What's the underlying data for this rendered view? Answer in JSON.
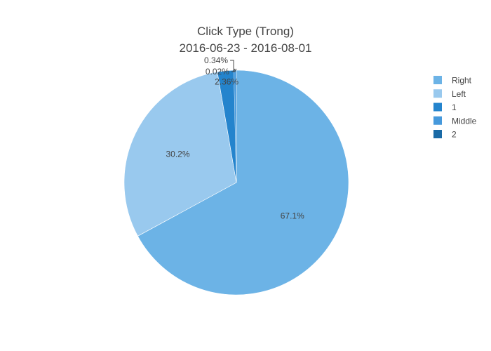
{
  "chart_data": {
    "type": "pie",
    "title": "Click Type (Trong)",
    "subtitle": "2016-06-23 - 2016-08-01",
    "slices": [
      {
        "name": "Right",
        "value": 67.1,
        "label": "67.1%",
        "color": "#6cb3e6"
      },
      {
        "name": "Left",
        "value": 30.2,
        "label": "30.2%",
        "color": "#99c9ee"
      },
      {
        "name": "1",
        "value": 2.36,
        "label": "2.36%",
        "color": "#2484cd"
      },
      {
        "name": "Middle",
        "value": 0.34,
        "label": "0.34%",
        "color": "#4699dc"
      },
      {
        "name": "2",
        "value": 0.02,
        "label": "0.02%",
        "color": "#1a6aa6"
      }
    ],
    "legend_position": "top-right",
    "direction": "clockwise",
    "start": "top"
  }
}
